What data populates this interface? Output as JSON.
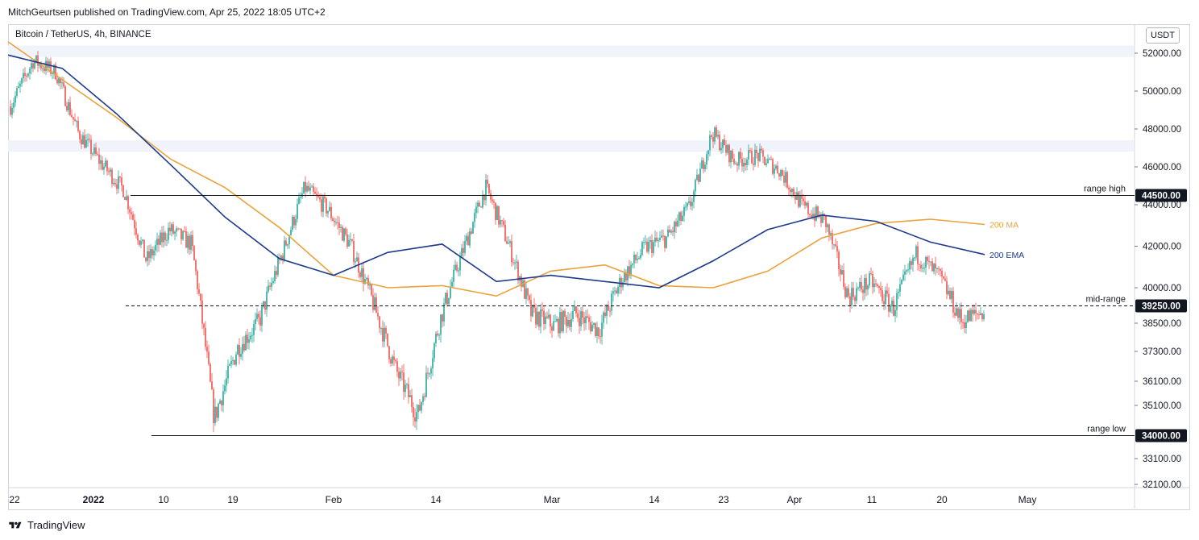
{
  "publisher_line": "MitchGeurtsen published on TradingView.com, Apr 25, 2022 18:05 UTC+2",
  "symbol_line": "Bitcoin / TetherUS, 4h, BINANCE",
  "currency_badge": "USDT",
  "footer_brand": "TradingView",
  "colors": {
    "up": "#26a69a",
    "down": "#ef5350",
    "ma200": "#e8a33d",
    "ema200": "#1e3a8a",
    "level": "#131722",
    "zone": "#f0f3fa"
  },
  "chart_data": {
    "type": "candlestick",
    "title": "Bitcoin / TetherUS, 4h, BINANCE",
    "ylim": [
      32000,
      52500
    ],
    "y_ticks": [
      "52000.00",
      "50000.00",
      "48000.00",
      "46000.00",
      "44000.00",
      "42000.00",
      "40000.00",
      "38500.00",
      "37300.00",
      "36100.00",
      "35100.00",
      "33100.00",
      "32100.00"
    ],
    "x_ticks": [
      "22",
      "2022",
      "10",
      "19",
      "Feb",
      "14",
      "Mar",
      "14",
      "23",
      "Apr",
      "11",
      "20",
      "May"
    ],
    "levels": [
      {
        "name": "range high",
        "value": 44500,
        "price_label": "44500.00",
        "style": "solid"
      },
      {
        "name": "mid-range",
        "value": 39250,
        "price_label": "39250.00",
        "style": "dashed"
      },
      {
        "name": "range low",
        "value": 34000,
        "price_label": "34000.00",
        "style": "solid"
      }
    ],
    "zones": [
      [
        51800,
        52400
      ],
      [
        46800,
        47400
      ]
    ],
    "series": [
      {
        "name": "200 MA",
        "values": [
          52600,
          50600,
          48600,
          46400,
          44900,
          42900,
          40600,
          40000,
          40100,
          39650,
          40800,
          41100,
          40100,
          40000,
          40800,
          42400,
          43100,
          43300,
          43050
        ]
      },
      {
        "name": "200 EMA",
        "values": [
          51900,
          51200,
          48800,
          46100,
          43400,
          41400,
          40600,
          41700,
          42100,
          40300,
          40600,
          40300,
          40000,
          41300,
          42800,
          43500,
          43200,
          42200,
          41600
        ]
      }
    ],
    "price_path": [
      49200,
      51600,
      51000,
      47800,
      46200,
      44800,
      41300,
      42800,
      42100,
      34600,
      37400,
      38600,
      41600,
      44900,
      43800,
      42100,
      39400,
      36600,
      34700,
      38700,
      41800,
      44900,
      42100,
      38900,
      38400,
      38900,
      38200,
      40400,
      41900,
      42400,
      43900,
      47800,
      46300,
      46600,
      45800,
      43900,
      43200,
      39600,
      40300,
      39100,
      41600,
      40600,
      38600,
      39000
    ]
  }
}
